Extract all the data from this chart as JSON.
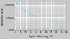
{
  "title": "",
  "xlabel": "Depth of discharge (%)",
  "ylabel": "Number of cycles",
  "x_data": [
    0,
    5,
    10,
    15,
    20,
    25,
    30,
    35,
    40,
    50,
    60,
    70,
    80,
    90,
    100
  ],
  "y_data": [
    1900000,
    1200000,
    750000,
    480000,
    320000,
    230000,
    175000,
    140000,
    115000,
    85000,
    68000,
    57000,
    50000,
    44000,
    40000
  ],
  "line_color": "#55ccdd",
  "line_style": "--",
  "line_width": 0.6,
  "bg_color": "#c8c8c8",
  "plot_bg_color": "#c8c8c8",
  "grid_color": "#ffffff",
  "ylim": [
    10000,
    2000000
  ],
  "xlim": [
    0,
    100
  ],
  "ytick_values": [
    10000,
    100000,
    1000000
  ],
  "ytick_labels": [
    "10 000",
    "100 000",
    "1 000 000"
  ],
  "xticks": [
    0,
    10,
    20,
    30,
    40,
    50,
    60,
    70,
    80,
    90,
    100
  ],
  "xtick_labels": [
    "0",
    "10",
    "20",
    "30",
    "40",
    "50",
    "60",
    "70",
    "80",
    "90",
    "100"
  ],
  "title_fontsize": 2.5,
  "label_fontsize": 2.2,
  "tick_fontsize": 2.0
}
